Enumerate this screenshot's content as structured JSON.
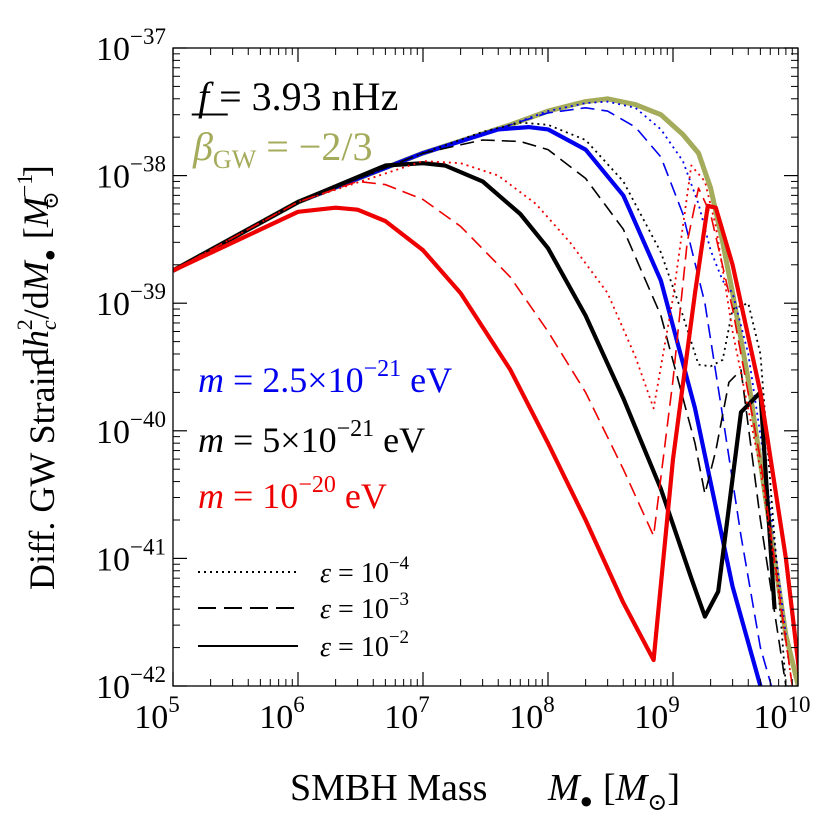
{
  "chart_data": {
    "type": "line",
    "xscale": "log",
    "yscale": "log",
    "xlim": [
      100000,
      10000000000
    ],
    "ylim": [
      1e-42,
      1e-37
    ],
    "x_ticks": [
      {
        "base": "10",
        "exp": "5"
      },
      {
        "base": "10",
        "exp": "6"
      },
      {
        "base": "10",
        "exp": "7"
      },
      {
        "base": "10",
        "exp": "8"
      },
      {
        "base": "10",
        "exp": "9"
      },
      {
        "base": "10",
        "exp": "10"
      }
    ],
    "y_ticks": [
      {
        "base": "10",
        "exp": "−42"
      },
      {
        "base": "10",
        "exp": "−41"
      },
      {
        "base": "10",
        "exp": "−40"
      },
      {
        "base": "10",
        "exp": "−39"
      },
      {
        "base": "10",
        "exp": "−38"
      },
      {
        "base": "10",
        "exp": "−37"
      }
    ],
    "xlabel": {
      "text": "SMBH Mass",
      "sym": "M",
      "sub": "●",
      "unit_open": "[",
      "unit_sym": "M",
      "unit_sub": "⊙",
      "unit_close": "]"
    },
    "ylabel": {
      "prefix": "Diff. GW Strain",
      "d1": "d",
      "h": "h",
      "h_sub": "c",
      "h_sup": "2",
      "slash": "/d",
      "M": "M",
      "M_sub": "●",
      "unit_open": "[",
      "unit_M": "M",
      "unit_sup": "−1",
      "unit_sub": "⊙",
      "unit_close": "]"
    },
    "annotations": {
      "freq": {
        "sym": "f",
        "bar": "—",
        "eq": " = 3.93 nHz"
      },
      "beta": {
        "sym": "β",
        "sub": "GW",
        "eq": " = −2/3",
        "color": "#a4ab5a"
      },
      "masses": [
        {
          "sym": "m",
          "eq": " = 2.5×10",
          "exp": "−21",
          "unit": " eV",
          "color": "#0000ee"
        },
        {
          "sym": "m",
          "eq": " = 5×10",
          "exp": "−21",
          "unit": " eV",
          "color": "#000000"
        },
        {
          "sym": "m",
          "eq": " = 10",
          "exp": "−20",
          "unit": " eV",
          "color": "#ee0000"
        }
      ]
    },
    "legend": {
      "placement": "bottom-left",
      "entries": [
        {
          "sym": "ε",
          "eq": " = 10",
          "exp": "−4",
          "style": "dotted"
        },
        {
          "sym": "ε",
          "eq": " = 10",
          "exp": "−3",
          "style": "dashed"
        },
        {
          "sym": "ε",
          "eq": " = 10",
          "exp": "−2",
          "style": "solid"
        }
      ]
    },
    "series": [
      {
        "color": "#a4ab5a",
        "style": "solid",
        "x": [
          100000,
          1000000,
          10000000,
          50000000,
          100000000,
          200000000,
          300000000,
          500000000,
          800000000,
          1200000000,
          1600000000,
          2000000000,
          2500000000,
          3000000000,
          4000000000,
          5500000000,
          8000000000,
          11000000000
        ],
        "y": [
          1.8e-39,
          6.2e-39,
          1.5e-38,
          2.5e-38,
          3.2e-38,
          3.8e-38,
          4e-38,
          3.6e-38,
          3e-38,
          2.1e-38,
          1.5e-38,
          8e-39,
          3e-39,
          1.2e-39,
          2.5e-40,
          3e-41,
          2.5e-42,
          7e-43
        ]
      },
      {
        "color": "#0000ee",
        "style": "dotted",
        "x": [
          100000,
          1000000,
          10000000,
          50000000,
          100000000,
          200000000,
          300000000,
          500000000,
          800000000,
          1200000000,
          1600000000,
          2000000000,
          2500000000,
          3000000000,
          4000000000,
          5500000000,
          8000000000
        ],
        "y": [
          1.8e-39,
          6.2e-39,
          1.5e-38,
          2.5e-38,
          3.2e-38,
          3.7e-38,
          3.8e-38,
          3.4e-38,
          2.3e-38,
          1.3e-38,
          6e-39,
          2.6e-39,
          1.5e-39,
          1.2e-39,
          4e-40,
          5e-41,
          2.5e-42
        ]
      },
      {
        "color": "#0000ee",
        "style": "dashed",
        "x": [
          100000,
          1000000,
          10000000,
          50000000,
          100000000,
          200000000,
          300000000,
          500000000,
          800000000,
          1200000000,
          1800000000,
          2500000000,
          3500000000,
          5000000000,
          7500000000
        ],
        "y": [
          1.8e-39,
          6.2e-39,
          1.5e-38,
          2.5e-38,
          3.1e-38,
          3.4e-38,
          3.2e-38,
          2.4e-38,
          1.4e-38,
          5e-39,
          1e-39,
          1.3e-40,
          1.5e-41,
          2e-42,
          5e-43
        ]
      },
      {
        "color": "#0000ee",
        "style": "solid",
        "x": [
          100000,
          1000000,
          10000000,
          40000000,
          70000000,
          100000000,
          200000000,
          400000000,
          800000000,
          1500000000,
          3000000000,
          5000000000,
          6000000000
        ],
        "y": [
          1.8e-39,
          6.2e-39,
          1.5e-38,
          2.3e-38,
          2.4e-38,
          2.3e-38,
          1.6e-38,
          7e-39,
          1.5e-39,
          1.5e-40,
          6e-42,
          1e-42,
          5e-43
        ]
      },
      {
        "color": "#000000",
        "style": "dotted",
        "x": [
          100000,
          1000000,
          10000000,
          30000000,
          60000000,
          100000000,
          200000000,
          400000000,
          800000000,
          1200000000,
          1600000000,
          2000000000,
          2500000000,
          3000000000,
          4000000000,
          5000000000,
          8000000000
        ],
        "y": [
          1.8e-39,
          6.2e-39,
          1.5e-38,
          2.2e-38,
          2.6e-38,
          2.5e-38,
          1.9e-38,
          9e-39,
          2.5e-39,
          8e-40,
          3.3e-40,
          3.2e-40,
          3.6e-40,
          9e-40,
          1e-39,
          4e-40,
          1e-42
        ]
      },
      {
        "color": "#000000",
        "style": "dashed",
        "x": [
          100000,
          1000000,
          10000000,
          30000000,
          60000000,
          100000000,
          200000000,
          400000000,
          800000000,
          1500000000,
          1800000000,
          2200000000,
          2800000000,
          3500000000,
          5000000000,
          8000000000
        ],
        "y": [
          1.8e-39,
          6.2e-39,
          1.5e-38,
          1.9e-38,
          1.85e-38,
          1.6e-38,
          9.5e-39,
          3.8e-39,
          8e-40,
          8e-41,
          3.2e-41,
          7e-41,
          2.4e-40,
          3e-40,
          2e-41,
          1e-42
        ]
      },
      {
        "color": "#000000",
        "style": "solid",
        "x": [
          100000,
          1000000,
          5000000,
          10000000,
          15000000,
          30000000,
          60000000,
          100000000,
          200000000,
          400000000,
          800000000,
          1400000000,
          1800000000,
          2300000000,
          3500000000,
          5000000000,
          6500000000
        ],
        "y": [
          1.8e-39,
          6.2e-39,
          1.2e-38,
          1.25e-38,
          1.2e-38,
          9e-39,
          5e-39,
          2.7e-39,
          8e-40,
          1.8e-40,
          3.5e-41,
          7e-42,
          3.5e-42,
          5.5e-42,
          1.4e-40,
          2e-40,
          4e-42
        ]
      },
      {
        "color": "#ee0000",
        "style": "dotted",
        "x": [
          100000,
          1000000,
          10000000,
          20000000,
          40000000,
          80000000,
          150000000,
          300000000,
          500000000,
          700000000,
          1000000000,
          1400000000,
          1800000000,
          2200000000,
          3000000000,
          5000000000,
          9000000000
        ],
        "y": [
          1.8e-39,
          6.2e-39,
          1.3e-38,
          1.25e-38,
          1e-38,
          6e-39,
          3e-39,
          1.2e-39,
          3.8e-40,
          1.5e-40,
          1.1e-39,
          1.2e-38,
          9e-39,
          4e-39,
          6e-40,
          5e-41,
          1e-42
        ]
      },
      {
        "color": "#ee0000",
        "style": "dashed",
        "x": [
          100000,
          1000000,
          3000000,
          5000000,
          10000000,
          20000000,
          50000000,
          100000000,
          200000000,
          400000000,
          700000000,
          1000000000,
          1300000000,
          1600000000,
          2000000000,
          3000000000,
          5000000000,
          9000000000
        ],
        "y": [
          1.8e-39,
          6.2e-39,
          9e-39,
          8.5e-39,
          6.5e-39,
          4e-39,
          1.6e-39,
          6e-40,
          2e-40,
          5e-41,
          1.5e-41,
          2.5e-40,
          3e-39,
          8e-39,
          5e-39,
          9e-40,
          6e-41,
          1e-42
        ]
      },
      {
        "color": "#ee0000",
        "style": "solid",
        "x": [
          100000,
          1000000,
          2000000,
          3000000,
          5000000,
          10000000,
          20000000,
          50000000,
          100000000,
          200000000,
          400000000,
          700000000,
          1000000000,
          1500000000,
          1900000000,
          2200000000,
          3000000000,
          5000000000,
          8000000000,
          11000000000
        ],
        "y": [
          1.8e-39,
          5.2e-39,
          5.6e-39,
          5.4e-39,
          4.4e-39,
          2.6e-39,
          1.2e-39,
          3e-40,
          8e-41,
          2e-41,
          4.5e-42,
          1.6e-42,
          6e-41,
          1.2e-39,
          5.8e-39,
          5.6e-39,
          2e-39,
          2e-40,
          1e-41,
          7e-43
        ]
      }
    ]
  }
}
